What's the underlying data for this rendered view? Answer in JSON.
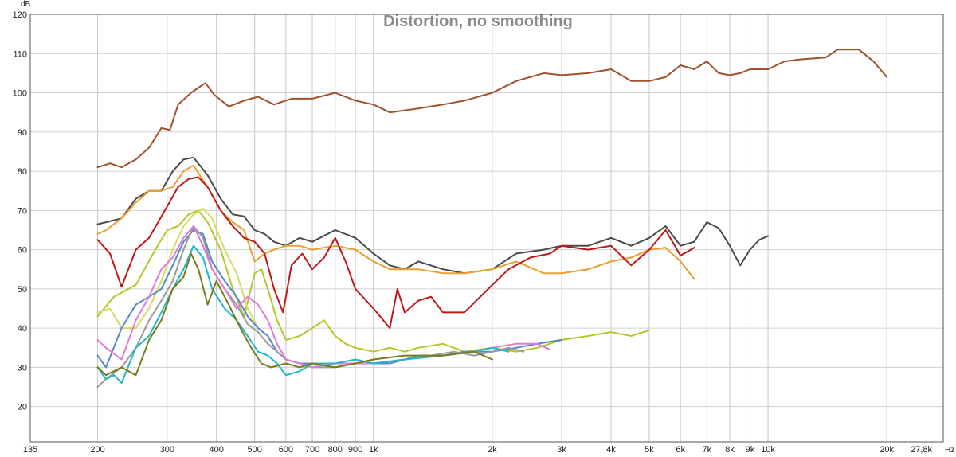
{
  "chart_data": {
    "type": "line",
    "title": "Distortion, no smoothing",
    "ylabel": "dB",
    "xunit": "Hz",
    "x_scale": "log",
    "xlim": [
      135,
      27800
    ],
    "ylim": [
      11,
      120
    ],
    "grid": true,
    "legend": "none",
    "x_ticks": [
      {
        "value": 135,
        "label": "135"
      },
      {
        "value": 200,
        "label": "200"
      },
      {
        "value": 300,
        "label": "300"
      },
      {
        "value": 400,
        "label": "400"
      },
      {
        "value": 500,
        "label": "500"
      },
      {
        "value": 600,
        "label": "600"
      },
      {
        "value": 700,
        "label": "700"
      },
      {
        "value": 800,
        "label": "800"
      },
      {
        "value": 900,
        "label": "900"
      },
      {
        "value": 1000,
        "label": "1k"
      },
      {
        "value": 2000,
        "label": "2k"
      },
      {
        "value": 3000,
        "label": "3k"
      },
      {
        "value": 4000,
        "label": "4k"
      },
      {
        "value": 5000,
        "label": "5k"
      },
      {
        "value": 6000,
        "label": "6k"
      },
      {
        "value": 7000,
        "label": "7k"
      },
      {
        "value": 8000,
        "label": "8k"
      },
      {
        "value": 9000,
        "label": "9k"
      },
      {
        "value": 10000,
        "label": "10k"
      },
      {
        "value": 20000,
        "label": "20k"
      },
      {
        "value": 27800,
        "label": "27,8k"
      }
    ],
    "y_ticks": [
      {
        "value": 20,
        "label": "20"
      },
      {
        "value": 30,
        "label": "30"
      },
      {
        "value": 40,
        "label": "40"
      },
      {
        "value": 50,
        "label": "50"
      },
      {
        "value": 60,
        "label": "60"
      },
      {
        "value": 70,
        "label": "70"
      },
      {
        "value": 80,
        "label": "80"
      },
      {
        "value": 90,
        "label": "90"
      },
      {
        "value": 100,
        "label": "100"
      },
      {
        "value": 110,
        "label": "110"
      },
      {
        "value": 120,
        "label": "120"
      }
    ],
    "series": [
      {
        "color": "#a0522d",
        "x": [
          200,
          215,
          230,
          250,
          270,
          290,
          305,
          320,
          345,
          375,
          395,
          430,
          470,
          510,
          560,
          620,
          700,
          800,
          900,
          1000,
          1100,
          1300,
          1500,
          1700,
          2000,
          2300,
          2700,
          3000,
          3500,
          4000,
          4500,
          5000,
          5500,
          6000,
          6500,
          7000,
          7500,
          8000,
          8500,
          9000,
          10000,
          11000,
          12000,
          14000,
          15000,
          17000,
          18500,
          20000
        ],
        "y": [
          81,
          82,
          81,
          83,
          86,
          91,
          90.5,
          97,
          100,
          102.5,
          99.5,
          96.5,
          98,
          99,
          97,
          98.5,
          98.5,
          100,
          98,
          97,
          95,
          96,
          97,
          98,
          100,
          103,
          105,
          104.5,
          105,
          106,
          103,
          103,
          104,
          107,
          106,
          108,
          105,
          104.5,
          105,
          106,
          106,
          108,
          108.5,
          109,
          111,
          111,
          108,
          104
        ]
      },
      {
        "color": "#4a4a4a",
        "x": [
          200,
          210,
          230,
          250,
          270,
          290,
          310,
          330,
          350,
          380,
          410,
          440,
          470,
          500,
          530,
          560,
          600,
          650,
          700,
          800,
          900,
          1000,
          1100,
          1200,
          1300,
          1500,
          1700,
          2000,
          2300,
          2700,
          3000,
          3500,
          4000,
          4500,
          5000,
          5500,
          6000,
          6500,
          7000,
          7500,
          8000,
          8500,
          9000,
          9500,
          10000
        ],
        "y": [
          66.5,
          67,
          68,
          73,
          75,
          75,
          80,
          83,
          83.5,
          79,
          73,
          69,
          68.5,
          65,
          64,
          62,
          61,
          63,
          62,
          65,
          63,
          59,
          56,
          55,
          57,
          55,
          54,
          55,
          59,
          60,
          61,
          61,
          63,
          61,
          63,
          66,
          61,
          62,
          67,
          65.5,
          61,
          56,
          60,
          62.5,
          63.5
        ]
      },
      {
        "color": "#e8a030",
        "x": [
          200,
          210,
          230,
          250,
          270,
          290,
          310,
          330,
          350,
          380,
          410,
          440,
          470,
          500,
          530,
          560,
          600,
          650,
          700,
          800,
          900,
          1000,
          1100,
          1300,
          1500,
          1700,
          2000,
          2300,
          2700,
          3000,
          3500,
          4000,
          4500,
          5000,
          5500,
          6000,
          6500
        ],
        "y": [
          64,
          65,
          68,
          72,
          75,
          75,
          76,
          80,
          81.5,
          76,
          70,
          67,
          65,
          57,
          59,
          60,
          61,
          61,
          60,
          61,
          60,
          57,
          55,
          55,
          54,
          54,
          55,
          57,
          54,
          54,
          55,
          57,
          58,
          60,
          60.5,
          57,
          52.5
        ]
      },
      {
        "color": "#c01818",
        "x": [
          200,
          215,
          230,
          250,
          270,
          300,
          320,
          340,
          360,
          380,
          410,
          440,
          470,
          500,
          530,
          560,
          590,
          620,
          660,
          700,
          750,
          800,
          850,
          900,
          1000,
          1100,
          1150,
          1200,
          1300,
          1400,
          1500,
          1700,
          2000,
          2200,
          2500,
          2800,
          3000,
          3500,
          4000,
          4500,
          5000,
          5500,
          6000,
          6500
        ],
        "y": [
          62.5,
          59,
          50.5,
          60,
          63,
          71,
          76,
          78,
          78.5,
          76,
          70,
          66,
          63,
          62,
          59,
          50,
          44,
          56,
          59,
          55,
          58,
          63,
          57,
          50,
          45,
          40,
          50,
          44,
          47,
          48,
          44,
          44,
          51,
          55,
          58,
          59,
          61,
          60,
          61,
          56,
          60,
          65,
          58.5,
          60.5
        ]
      },
      {
        "color": "#b7c528",
        "x": [
          200,
          220,
          250,
          280,
          300,
          320,
          340,
          360,
          380,
          410,
          440,
          470,
          500,
          520,
          540,
          570,
          600,
          650,
          700,
          750,
          800,
          850,
          900,
          1000,
          1100,
          1200,
          1300,
          1500,
          1700,
          2000,
          2300,
          2600,
          3000,
          3500,
          4000,
          4500,
          5000
        ],
        "y": [
          43,
          48,
          51,
          60,
          65,
          66,
          69,
          70,
          67,
          60,
          50,
          43,
          54,
          55,
          50,
          42,
          37,
          38,
          40,
          42,
          38,
          36,
          35,
          34,
          35,
          34,
          35,
          36,
          34,
          35,
          34,
          35,
          37,
          38,
          39,
          38,
          39.5
        ]
      },
      {
        "color": "#d4dc60",
        "x": [
          200,
          215,
          230,
          250,
          270,
          290,
          310,
          330,
          350,
          370,
          390,
          420,
          450,
          480,
          510
        ],
        "y": [
          44,
          45,
          40,
          40,
          45,
          52,
          60,
          66,
          69,
          70.5,
          68,
          60,
          54,
          45,
          40
        ]
      },
      {
        "color": "#5588c8",
        "x": [
          200,
          210,
          230,
          250,
          270,
          290,
          310,
          330,
          350,
          370,
          390,
          420,
          450,
          480,
          510,
          540,
          570,
          600,
          650,
          700,
          800,
          900,
          1000,
          1100,
          1200,
          1300,
          1500,
          1700,
          2000,
          2300,
          2600,
          3000
        ],
        "y": [
          33,
          30,
          40,
          46,
          48,
          50,
          56,
          62,
          65,
          64,
          57,
          52,
          48,
          43,
          40,
          38,
          34,
          32,
          31,
          31,
          31,
          31,
          31,
          31,
          32,
          33,
          33,
          34,
          34,
          35,
          36,
          37
        ]
      },
      {
        "color": "#9a9a9a",
        "x": [
          200,
          210,
          230,
          250,
          270,
          290,
          310,
          330,
          350,
          370,
          390,
          420,
          450,
          480,
          510,
          540,
          570,
          600,
          650,
          700,
          800,
          900,
          1000,
          1200,
          1400,
          1600,
          1800,
          2000,
          2200,
          2400
        ],
        "y": [
          25,
          27,
          30,
          35,
          42,
          47,
          52,
          60,
          66,
          63,
          55,
          50,
          46,
          41,
          39,
          36,
          34,
          32,
          31,
          30,
          30,
          31,
          31,
          32,
          33,
          34,
          33,
          34,
          35,
          34
        ]
      },
      {
        "color": "#e07ad8",
        "x": [
          200,
          210,
          230,
          250,
          270,
          290,
          310,
          330,
          350,
          370,
          390,
          420,
          450,
          480,
          510,
          540,
          570,
          600,
          650,
          700,
          800,
          900,
          1000,
          1200,
          1500,
          1800,
          2000,
          2300,
          2600,
          2800
        ],
        "y": [
          37,
          35,
          32,
          42,
          48,
          55,
          58,
          63,
          66,
          61,
          55,
          50,
          45,
          48,
          46,
          42,
          36,
          32,
          31,
          30,
          31,
          31,
          31,
          32,
          33,
          34,
          35,
          36,
          36,
          34.5
        ]
      },
      {
        "color": "#20b8c8",
        "x": [
          200,
          210,
          220,
          230,
          250,
          270,
          290,
          310,
          330,
          350,
          370,
          390,
          420,
          450,
          480,
          510,
          540,
          570,
          600,
          650,
          700,
          800,
          900,
          1000,
          1200,
          1500,
          1800,
          2000,
          2200
        ],
        "y": [
          30,
          27,
          28,
          26,
          35,
          38,
          44,
          50,
          55,
          61,
          58,
          50,
          45,
          42,
          38,
          34,
          33,
          31,
          28,
          29,
          31,
          31,
          32,
          31,
          32,
          33,
          34,
          35,
          34
        ]
      },
      {
        "color": "#7a7a18",
        "x": [
          200,
          210,
          230,
          250,
          270,
          290,
          310,
          330,
          345,
          360,
          380,
          400,
          430,
          460,
          490,
          520,
          550,
          600,
          650,
          700,
          800,
          900,
          1000,
          1200,
          1500,
          1800,
          2000
        ],
        "y": [
          30,
          28,
          30,
          28,
          37,
          42,
          50,
          53,
          59,
          55,
          46,
          52,
          46,
          40,
          35,
          31,
          30,
          31,
          30,
          31,
          30,
          31,
          32,
          33,
          33,
          34,
          32
        ]
      }
    ]
  }
}
